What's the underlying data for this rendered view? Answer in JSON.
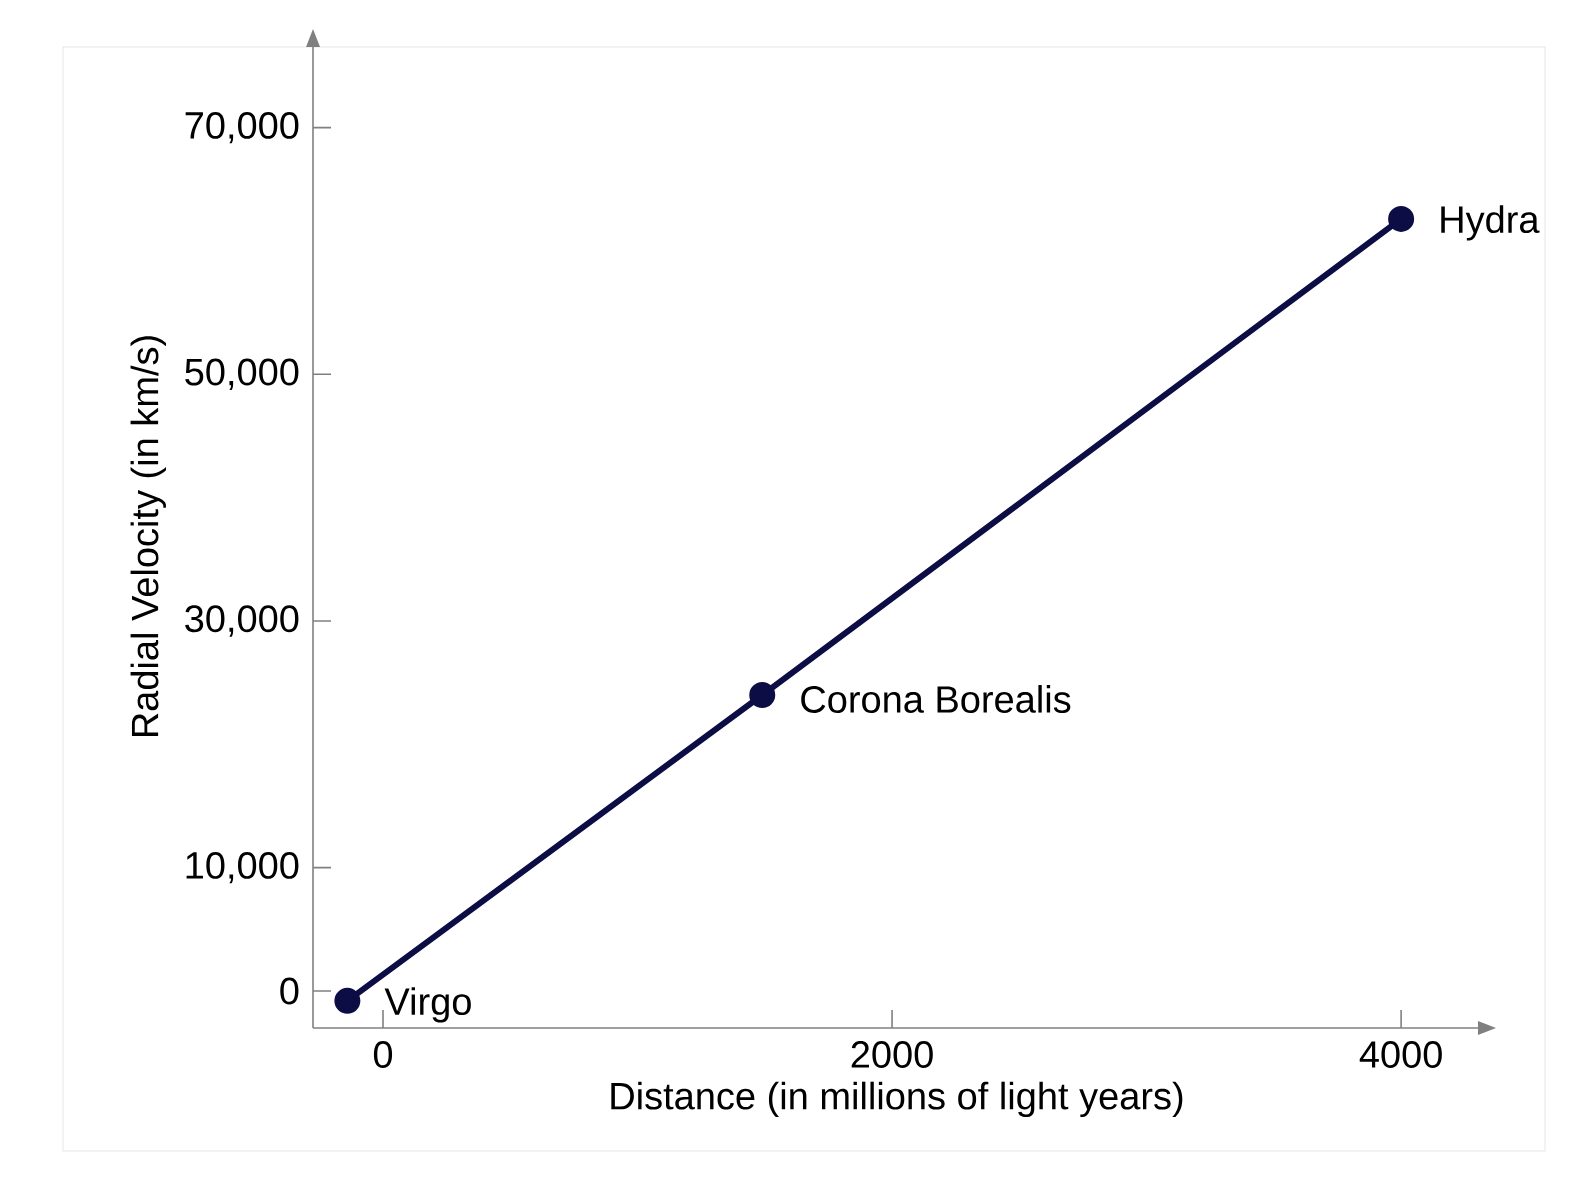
{
  "chart_data": {
    "type": "line",
    "xlabel": "Distance (in millions of light years)",
    "ylabel": "Radial Velocity (in km/s)",
    "x": [
      -140,
      1490,
      4000
    ],
    "values": [
      -800,
      24000,
      62600
    ],
    "color": "#0d0d45",
    "marker": "circle",
    "line_style": "solid",
    "xlim": [
      -275,
      4310
    ],
    "ylim": [
      -3000,
      76700
    ],
    "xticks": [
      0,
      2000,
      4000
    ],
    "yticks": [
      0,
      {
        "value": 10000,
        "label": "10,000"
      },
      {
        "value": 30000,
        "label": "30,000"
      },
      {
        "value": 50000,
        "label": "50,000"
      },
      {
        "value": 70000,
        "label": "70,000"
      }
    ],
    "annotations": [
      {
        "text": "Virgo",
        "x": -140,
        "y": -800
      },
      {
        "text": "Corona Borealis",
        "x": 1490,
        "y": 24000
      },
      {
        "text": "Hydra",
        "x": 4000,
        "y": 62600
      }
    ]
  }
}
